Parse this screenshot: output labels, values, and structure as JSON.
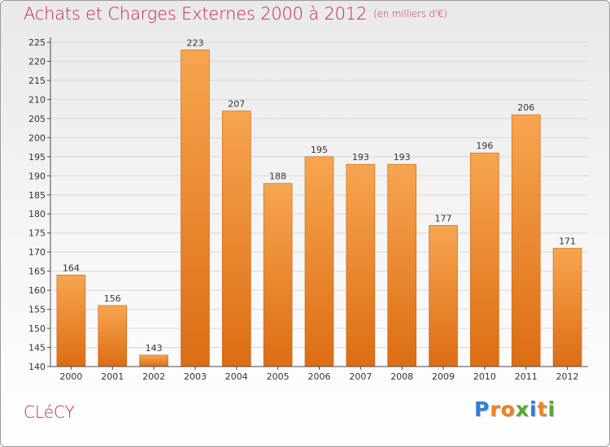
{
  "title": "Achats et Charges Externes 2000 à 2012",
  "unit": "(en milliers d'€)",
  "town": "CLéCY",
  "brand": {
    "text": "Proxiti",
    "letters": [
      "P",
      "r",
      "o",
      "x",
      "i",
      "t",
      "i"
    ],
    "colors": [
      "#2f7fd6",
      "#f0821e",
      "#f0821e",
      "#5aa832",
      "#2f7fd6",
      "#f0821e",
      "#5aa832"
    ]
  },
  "colors": {
    "bar_top": "#f7a54f",
    "bar_bottom": "#dc6d14",
    "title": "#c0294a",
    "axis": "#4a4a4a"
  },
  "chart_data": {
    "type": "bar",
    "categories": [
      "2000",
      "2001",
      "2002",
      "2003",
      "2004",
      "2005",
      "2006",
      "2007",
      "2008",
      "2009",
      "2010",
      "2011",
      "2012"
    ],
    "values": [
      164,
      156,
      143,
      223,
      207,
      188,
      195,
      193,
      193,
      177,
      196,
      206,
      171
    ],
    "ylim": [
      140,
      225
    ],
    "yticks": [
      140,
      145,
      150,
      155,
      160,
      165,
      170,
      175,
      180,
      185,
      190,
      195,
      200,
      205,
      210,
      215,
      220,
      225
    ],
    "grid": true
  }
}
